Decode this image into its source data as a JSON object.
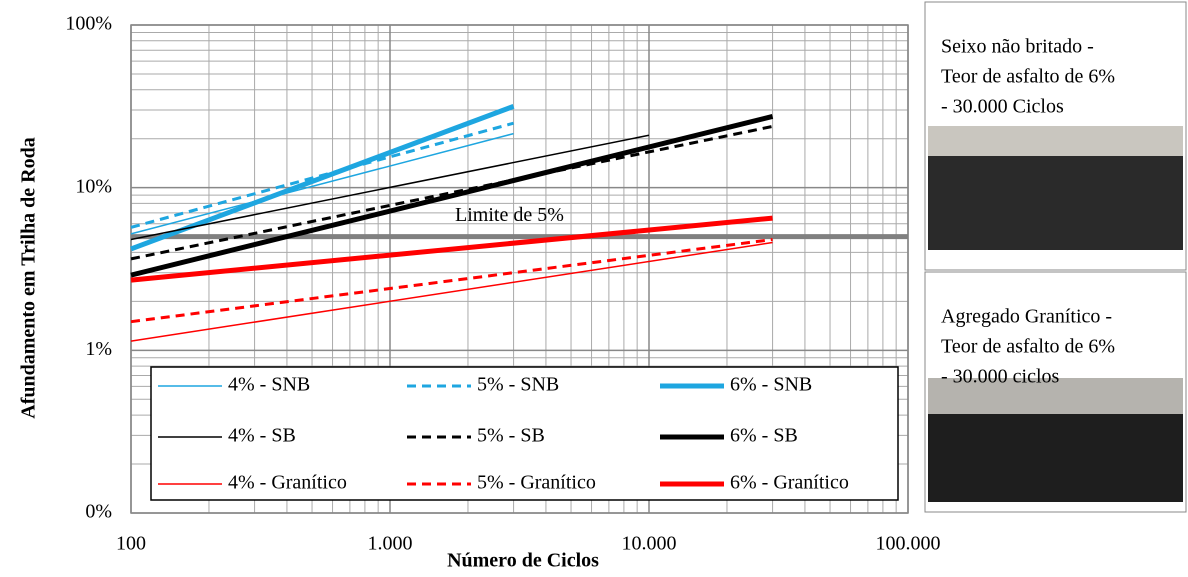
{
  "chart_data": {
    "type": "line",
    "x_label": "Número de Ciclos",
    "y_label": "Afundamento em Trilha de Roda",
    "log_x": true,
    "log_y": true,
    "grid": true,
    "xlim": [
      100,
      100000
    ],
    "xticks": [
      100,
      {
        "value": 1000,
        "label": "1.000"
      },
      {
        "value": 10000,
        "label": "10.000"
      },
      {
        "value": 100000,
        "label": "100.000"
      }
    ],
    "ylim": [
      0.1,
      100
    ],
    "yticks": [
      {
        "value": 0.1,
        "label": "0%"
      },
      {
        "value": 1,
        "label": "1%"
      },
      {
        "value": 10,
        "label": "10%"
      },
      {
        "value": 100,
        "label": "100%"
      }
    ],
    "annotation": {
      "text": "Limite de 5%",
      "value": 5,
      "color": "#808080"
    },
    "series": [
      {
        "name": "4% - SNB",
        "color": "#1ea6e0",
        "width": 1.5,
        "dashed": false,
        "x": [
          100,
          3000
        ],
        "values": [
          5.2,
          21.5
        ]
      },
      {
        "name": "5% - SNB",
        "color": "#1ea6e0",
        "width": 3,
        "dashed": true,
        "x": [
          100,
          3000
        ],
        "values": [
          5.7,
          24.9
        ]
      },
      {
        "name": "6% - SNB",
        "color": "#1ea6e0",
        "width": 5,
        "dashed": false,
        "x": [
          100,
          3000
        ],
        "values": [
          4.2,
          31.6
        ]
      },
      {
        "name": "4% - SB",
        "color": "#000000",
        "width": 1.5,
        "dashed": false,
        "x": [
          100,
          10000
        ],
        "values": [
          4.8,
          21
        ]
      },
      {
        "name": "5% - SB",
        "color": "#000000",
        "width": 3,
        "dashed": true,
        "x": [
          100,
          30000
        ],
        "values": [
          3.65,
          23.8
        ]
      },
      {
        "name": "6% - SB",
        "color": "#000000",
        "width": 5,
        "dashed": false,
        "x": [
          100,
          30000
        ],
        "values": [
          2.9,
          27.4
        ]
      },
      {
        "name": "4% - Granítico",
        "color": "#ff0000",
        "width": 1.5,
        "dashed": false,
        "x": [
          100,
          30000
        ],
        "values": [
          1.14,
          4.6
        ]
      },
      {
        "name": "5% - Granítico",
        "color": "#ff0000",
        "width": 3,
        "dashed": true,
        "x": [
          100,
          30000
        ],
        "values": [
          1.5,
          4.8
        ]
      },
      {
        "name": "6% - Granítico",
        "color": "#ff0000",
        "width": 5,
        "dashed": false,
        "x": [
          100,
          30000
        ],
        "values": [
          2.7,
          6.5
        ]
      }
    ]
  },
  "panels": [
    {
      "caption": [
        "Seixo não britado -",
        "Teor de asfalto de 6%",
        "- 30.000 Ciclos"
      ]
    },
    {
      "caption": [
        "Agregado Granítico -",
        "Teor de asfalto de 6%",
        "- 30.000 ciclos"
      ]
    }
  ]
}
